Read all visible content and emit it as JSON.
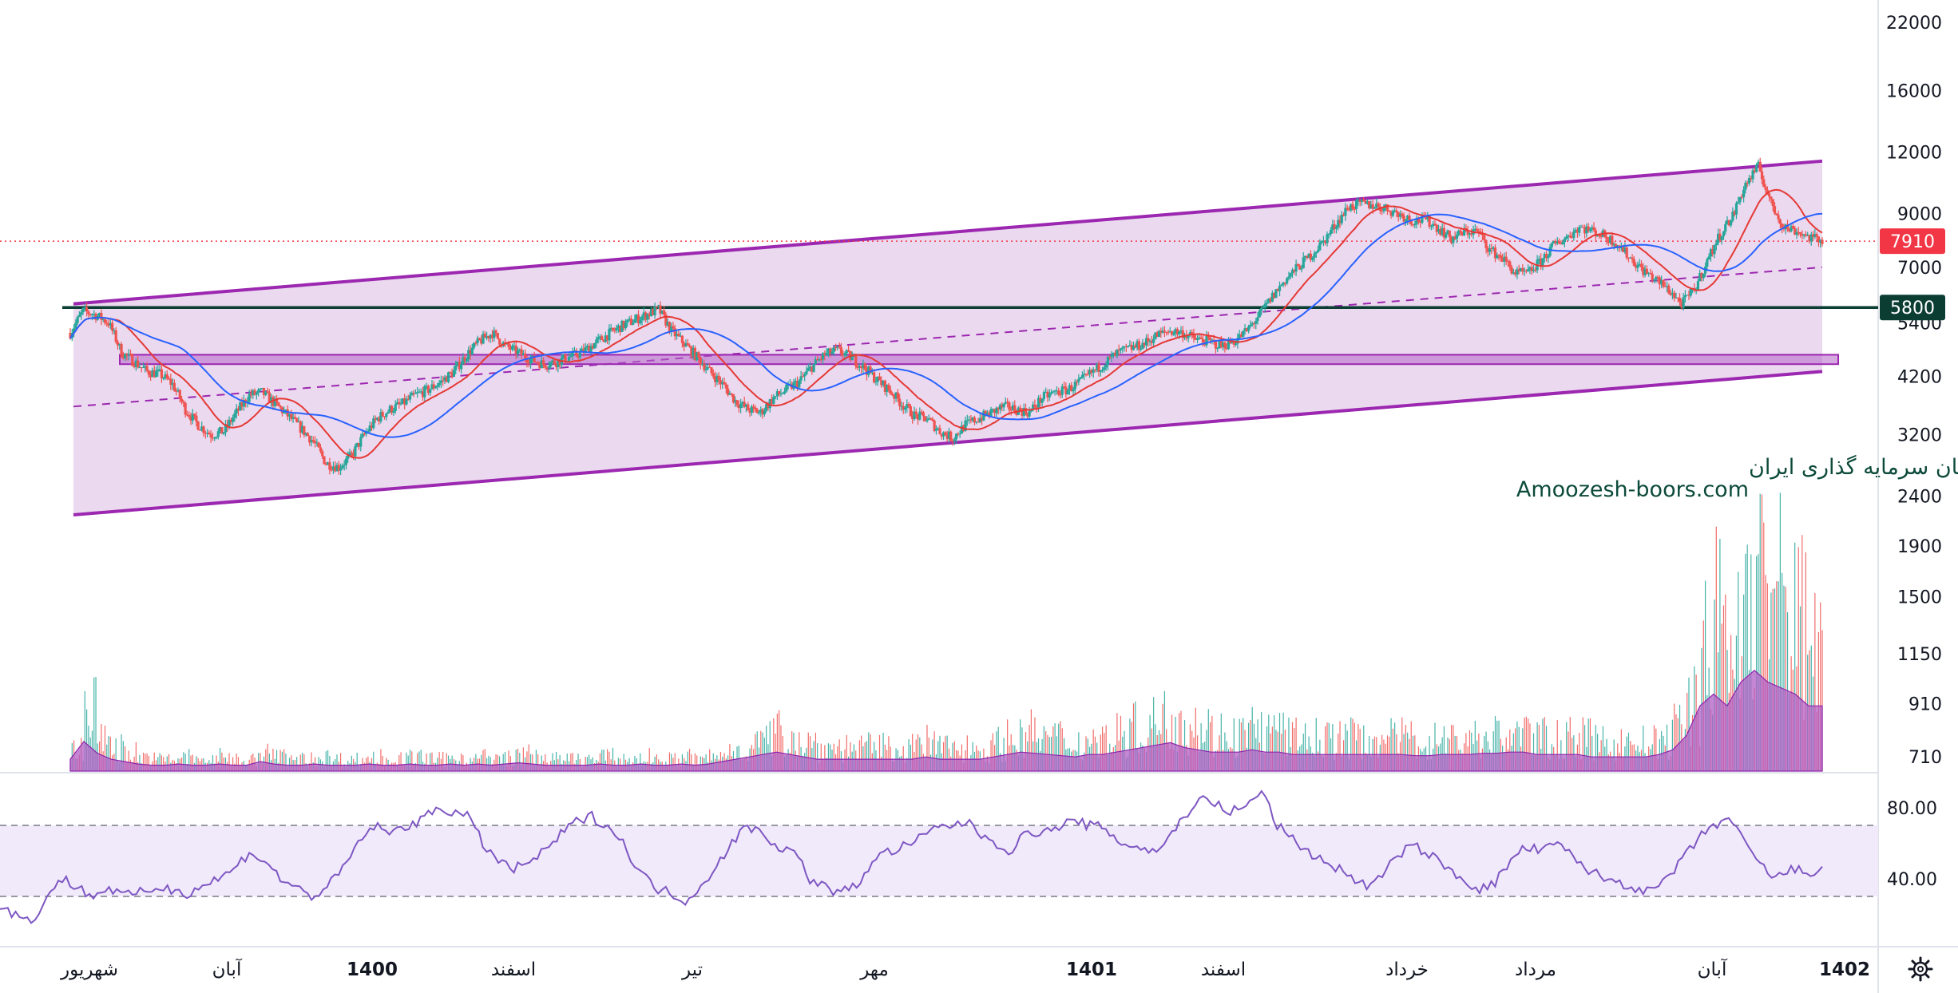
{
  "chart_data": {
    "type": "candlestick",
    "title": "",
    "price_axis": {
      "scale": "log",
      "ticks": [
        "22000",
        "16000",
        "12000",
        "9000",
        "7000",
        "5400",
        "4200",
        "3200",
        "2400",
        "1900",
        "1500",
        "1150",
        "910",
        "710"
      ],
      "tick_values": [
        22000,
        16000,
        12000,
        9000,
        7000,
        5400,
        4200,
        3200,
        2400,
        1900,
        1500,
        1150,
        910,
        710
      ]
    },
    "time_axis": {
      "labels": [
        "شهریور",
        "آبان",
        "1400",
        "اسفند",
        "تیر",
        "مهر",
        "1401",
        "اسفند",
        "خرداد",
        "مرداد",
        "آبان",
        "1402"
      ],
      "bold": [
        false,
        false,
        true,
        false,
        false,
        false,
        true,
        false,
        false,
        false,
        false,
        true
      ]
    },
    "last_price": {
      "value": 7910,
      "label": "7910",
      "color": "#f23645"
    },
    "support_line": {
      "value": 5800,
      "label": "5800",
      "color": "#0b3d33"
    },
    "channel": {
      "upper": [
        [
          0,
          5900
        ],
        [
          1,
          11500
        ]
      ],
      "lower": [
        [
          0,
          2200
        ],
        [
          1,
          4300
        ]
      ],
      "mid": [
        [
          0,
          3650
        ],
        [
          1,
          7000
        ]
      ],
      "zone": {
        "low": 4450,
        "high": 4650
      },
      "color": "#9c27b0"
    },
    "series": [
      {
        "name": "price",
        "close": [
          5150,
          5700,
          5600,
          5400,
          4700,
          4500,
          4300,
          4250,
          4050,
          3600,
          3350,
          3200,
          3250,
          3550,
          3850,
          3900,
          3700,
          3500,
          3300,
          3100,
          2800,
          2750,
          2900,
          3200,
          3450,
          3600,
          3700,
          3850,
          3950,
          4100,
          4300,
          4650,
          4950,
          5150,
          4850,
          4700,
          4550,
          4450,
          4500,
          4600,
          4700,
          4900,
          5100,
          5300,
          5450,
          5600,
          5750,
          5200,
          4900,
          4600,
          4300,
          4050,
          3750,
          3600,
          3550,
          3800,
          3950,
          4100,
          4400,
          4650,
          4750,
          4600,
          4400,
          4150,
          3950,
          3700,
          3500,
          3450,
          3250,
          3150,
          3350,
          3450,
          3550,
          3650,
          3600,
          3550,
          3800,
          3900,
          3950,
          4100,
          4300,
          4500,
          4700,
          4800,
          4900,
          5100,
          5200,
          5150,
          5000,
          4950,
          4850,
          4950,
          5200,
          5600,
          6100,
          6600,
          7000,
          7400,
          7900,
          8600,
          9300,
          9400,
          9350,
          9200,
          8950,
          8700,
          8750,
          8400,
          8000,
          8250,
          8300,
          7600,
          7300,
          6800,
          6800,
          7200,
          7750,
          8050,
          8450,
          8300,
          8100,
          7800,
          7300,
          6900,
          6600,
          6300,
          5900,
          6300,
          7200,
          8150,
          8900,
          10300,
          11200,
          9400,
          8450,
          8300,
          8050,
          7910
        ]
      },
      {
        "name": "volume",
        "relative": [
          0.1,
          0.25,
          0.15,
          0.1,
          0.08,
          0.06,
          0.05,
          0.05,
          0.06,
          0.05,
          0.05,
          0.06,
          0.05,
          0.05,
          0.08,
          0.06,
          0.05,
          0.05,
          0.06,
          0.05,
          0.05,
          0.05,
          0.06,
          0.05,
          0.05,
          0.06,
          0.05,
          0.05,
          0.06,
          0.05,
          0.06,
          0.05,
          0.06,
          0.07,
          0.06,
          0.05,
          0.05,
          0.05,
          0.05,
          0.06,
          0.05,
          0.05,
          0.06,
          0.05,
          0.05,
          0.06,
          0.05,
          0.06,
          0.08,
          0.1,
          0.12,
          0.14,
          0.16,
          0.14,
          0.12,
          0.1,
          0.1,
          0.1,
          0.1,
          0.1,
          0.1,
          0.1,
          0.1,
          0.12,
          0.1,
          0.1,
          0.1,
          0.1,
          0.12,
          0.14,
          0.16,
          0.15,
          0.14,
          0.13,
          0.12,
          0.14,
          0.14,
          0.16,
          0.18,
          0.2,
          0.22,
          0.24,
          0.2,
          0.18,
          0.16,
          0.16,
          0.16,
          0.18,
          0.16,
          0.16,
          0.14,
          0.14,
          0.14,
          0.14,
          0.14,
          0.14,
          0.14,
          0.14,
          0.14,
          0.13,
          0.13,
          0.14,
          0.14,
          0.14,
          0.15,
          0.15,
          0.16,
          0.16,
          0.14,
          0.14,
          0.14,
          0.14,
          0.12,
          0.12,
          0.12,
          0.12,
          0.12,
          0.14,
          0.18,
          0.3,
          0.55,
          0.65,
          0.55,
          0.75,
          0.85,
          0.75,
          0.7,
          0.65,
          0.55,
          0.55
        ]
      },
      {
        "name": "rsi",
        "values": [
          25,
          20,
          15,
          30,
          40,
          35,
          30,
          35,
          30,
          32,
          35,
          34,
          32,
          36,
          40,
          45,
          55,
          50,
          40,
          35,
          30,
          35,
          45,
          60,
          70,
          65,
          70,
          72,
          80,
          78,
          75,
          60,
          50,
          45,
          50,
          55,
          65,
          72,
          75,
          70,
          60,
          45,
          35,
          32,
          28,
          35,
          48,
          60,
          70,
          65,
          58,
          55,
          40,
          35,
          32,
          36,
          50,
          55,
          58,
          62,
          68,
          70,
          72,
          65,
          60,
          55,
          68,
          65,
          70,
          72,
          70,
          68,
          60,
          58,
          55,
          62,
          75,
          85,
          82,
          78,
          80,
          90,
          70,
          62,
          55,
          50,
          45,
          40,
          35,
          45,
          55,
          58,
          52,
          45,
          40,
          33,
          38,
          50,
          58,
          55,
          60,
          52,
          45,
          40,
          38,
          35,
          32,
          40,
          50,
          62,
          70,
          74,
          60,
          48,
          40,
          45,
          44,
          44
        ]
      }
    ],
    "rsi_levels": {
      "upper": 70,
      "lower": 30,
      "ticks": [
        "80.00",
        "40.00"
      ]
    },
    "colors": {
      "up": "#26a69a",
      "down": "#ef5350",
      "ma_red": "#e53935",
      "ma_blue": "#2962ff",
      "channel_fill": "#e8d2ec",
      "volume_area": "#b15fc4",
      "rsi_line": "#7e57c2",
      "rsi_band": "#f1eafb"
    },
    "watermark": {
      "line1": "انجمن خبرگان سرمایه گذاری ایران",
      "line2": "Amoozesh-boors.com"
    }
  },
  "ui": {
    "settings_icon": "gear-icon"
  }
}
